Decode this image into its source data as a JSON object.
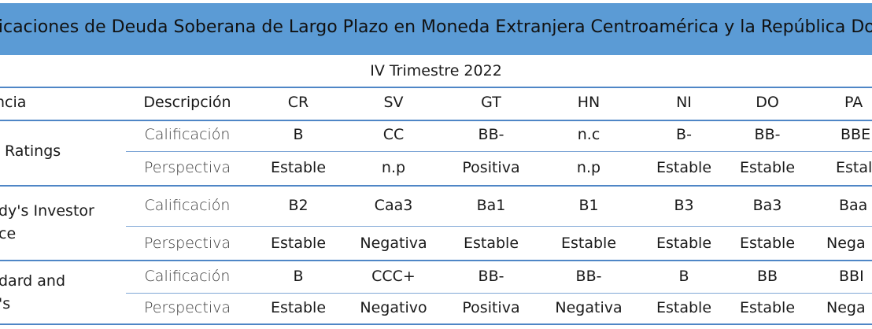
{
  "title": "ificaciones de Deuda Soberana de Largo Plazo en Moneda Extranjera Centroamérica y la República Dominic",
  "period": "IV Trimestre 2022",
  "headers": [
    "ncia",
    "Descripción",
    "CR",
    "SV",
    "GT",
    "HN",
    "NI",
    "DO",
    "PA"
  ],
  "agencies": [
    {
      "name_lines": [
        "Ratings"
      ],
      "rows": [
        {
          "desc": "Calificación",
          "values": [
            "B",
            "CC",
            "BB-",
            "n.c",
            "B-",
            "BB-",
            "BBE"
          ]
        },
        {
          "desc": "Perspectiva",
          "values": [
            "Estable",
            "n.p",
            "Positiva",
            "n.p",
            "Estable",
            "Estable",
            "Estal"
          ]
        }
      ]
    },
    {
      "name_lines": [
        "dy's Investor",
        "ce"
      ],
      "rows": [
        {
          "desc": "Calificación",
          "values": [
            "B2",
            "Caa3",
            "Ba1",
            "B1",
            "B3",
            "Ba3",
            "Baa"
          ]
        },
        {
          "desc": "Perspectiva",
          "values": [
            "Estable",
            "Negativa",
            "Estable",
            "Estable",
            "Estable",
            "Estable",
            "Nega"
          ]
        }
      ]
    },
    {
      "name_lines": [
        "dard and",
        "'s"
      ],
      "rows": [
        {
          "desc": "Calificación",
          "values": [
            "B",
            "CCC+",
            "BB-",
            "BB-",
            "B",
            "BB",
            "BBI"
          ]
        },
        {
          "desc": "Perspectiva",
          "values": [
            "Estable",
            "Negativo",
            "Positiva",
            "Negativa",
            "Estable",
            "Estable",
            "Nega"
          ]
        }
      ]
    }
  ]
}
